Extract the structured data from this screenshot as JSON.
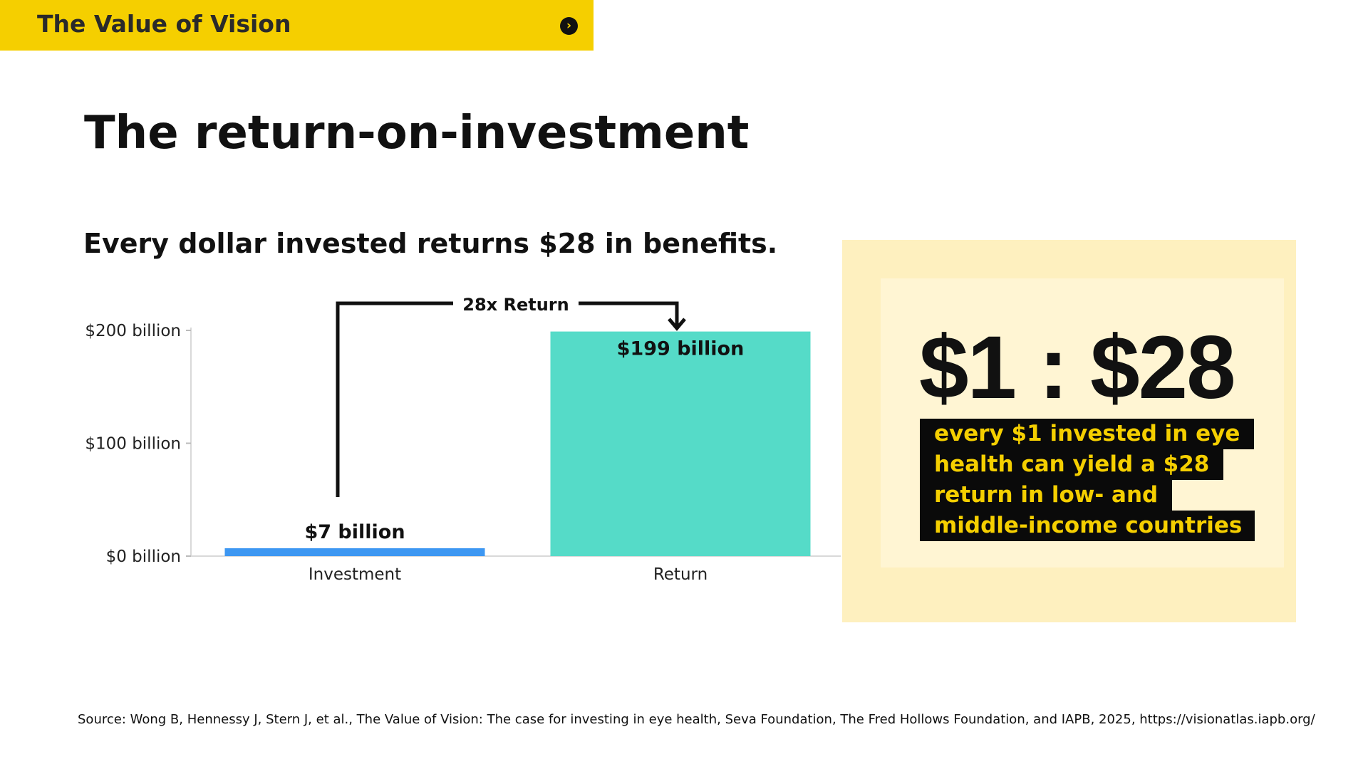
{
  "banner": {
    "title": "The Value of Vision",
    "icon": "chevron-right-circle-icon"
  },
  "page_title": "The return-on-investment",
  "chart_data": {
    "type": "bar",
    "title": "Every dollar invested returns $28 in benefits.",
    "categories": [
      "Investment",
      "Return"
    ],
    "values": [
      7,
      199
    ],
    "data_labels": [
      "$7 billion",
      "$199 billion"
    ],
    "ylim": [
      0,
      200
    ],
    "yticks": [
      0,
      100,
      200
    ],
    "ytick_labels": [
      "$0 billion",
      "$100 billion",
      "$200 billion"
    ],
    "colors": [
      "#3d97f2",
      "#55dbc8"
    ],
    "annotation": "28x Return",
    "grid": false
  },
  "callout": {
    "ratio": "$1 : $28",
    "caption_lines": [
      "every $1 invested in eye",
      "health can yield a $28",
      "return in low- and",
      "middle-income countries"
    ]
  },
  "source": "Source: Wong B, Hennessy J, Stern J, et al., The Value of Vision: The case for investing in eye health, Seva Foundation, The Fred Hollows Foundation, and IAPB, 2025, https://visionatlas.iapb.org/"
}
